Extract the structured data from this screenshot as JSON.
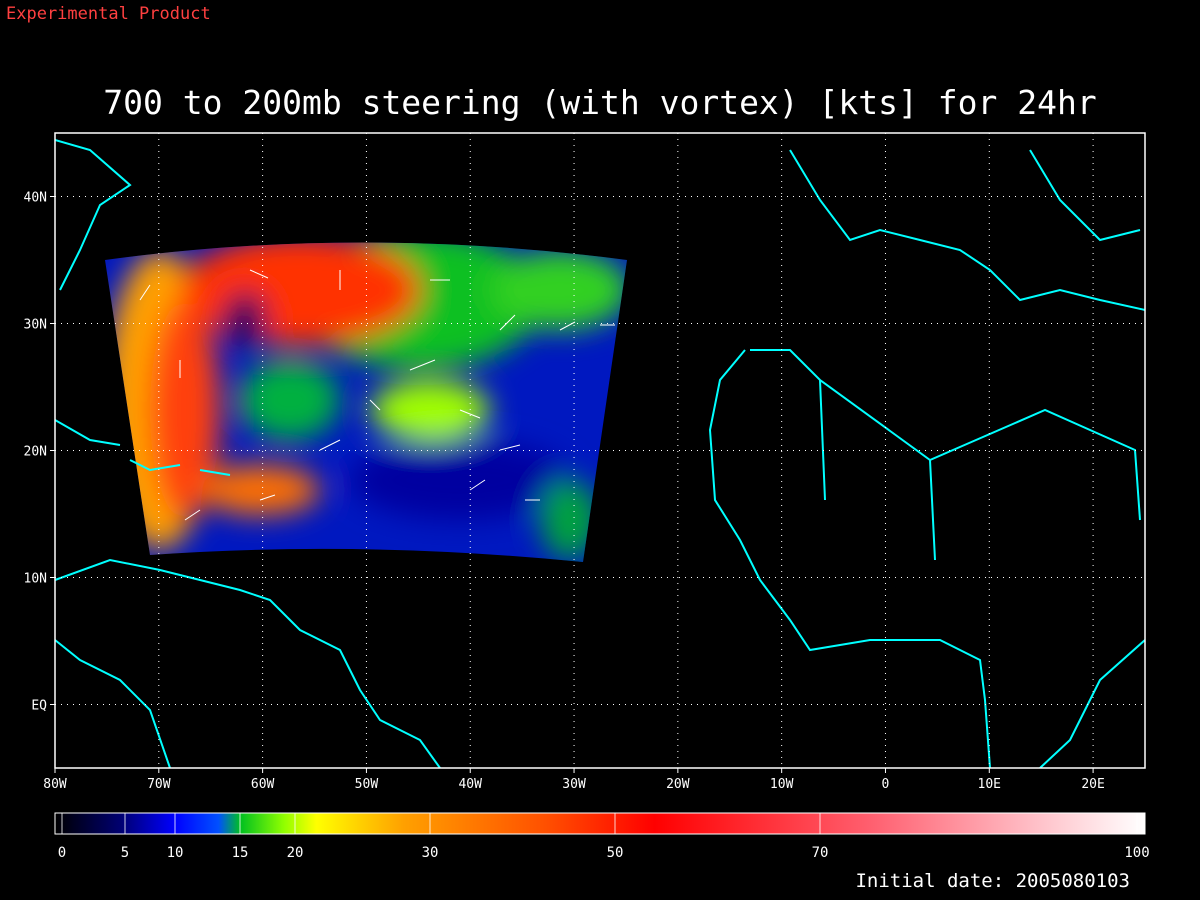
{
  "header": {
    "label": "Experimental Product"
  },
  "map": {
    "title": "700 to 200mb steering (with vortex) [kts] for 24hr",
    "lonlim": [
      -80,
      25
    ],
    "latlim": [
      -5,
      45
    ],
    "lonticks": [
      {
        "value": -80,
        "label": "80W"
      },
      {
        "value": -70,
        "label": "70W"
      },
      {
        "value": -60,
        "label": "60W"
      },
      {
        "value": -50,
        "label": "50W"
      },
      {
        "value": -40,
        "label": "40W"
      },
      {
        "value": -30,
        "label": "30W"
      },
      {
        "value": -20,
        "label": "20W"
      },
      {
        "value": -10,
        "label": "10W"
      },
      0,
      {
        "value": 10,
        "label": "10E"
      },
      {
        "value": 20,
        "label": "20E"
      }
    ],
    "latticks": [
      {
        "value": 40,
        "label": "40N"
      },
      {
        "value": 30,
        "label": "30N"
      },
      {
        "value": 20,
        "label": "20N"
      },
      {
        "value": 10,
        "label": "10N"
      },
      {
        "value": 0,
        "label": "EQ"
      }
    ],
    "grid": true
  },
  "colorbar": {
    "ticks": [
      0,
      5,
      10,
      15,
      20,
      30,
      50,
      70,
      100
    ]
  },
  "footer": {
    "label": "Initial date: 2005080103"
  }
}
